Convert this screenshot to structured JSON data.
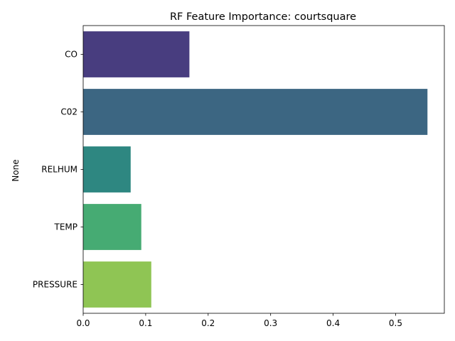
{
  "chart_data": {
    "type": "bar",
    "orientation": "horizontal",
    "title": "RF Feature Importance: courtsquare",
    "xlabel": "",
    "ylabel": "None",
    "categories": [
      "CO",
      "C02",
      "RELHUM",
      "TEMP",
      "PRESSURE"
    ],
    "values": [
      0.17,
      0.551,
      0.076,
      0.093,
      0.109
    ],
    "colors": [
      "#483d7f",
      "#3c6682",
      "#2e8781",
      "#46ab73",
      "#8fc554"
    ],
    "xlim": [
      0,
      0.578
    ],
    "xticks": [
      "0.0",
      "0.1",
      "0.2",
      "0.3",
      "0.4",
      "0.5"
    ],
    "xtick_values": [
      0,
      0.1,
      0.2,
      0.3,
      0.4,
      0.5
    ],
    "grid": false,
    "legend": "none"
  }
}
